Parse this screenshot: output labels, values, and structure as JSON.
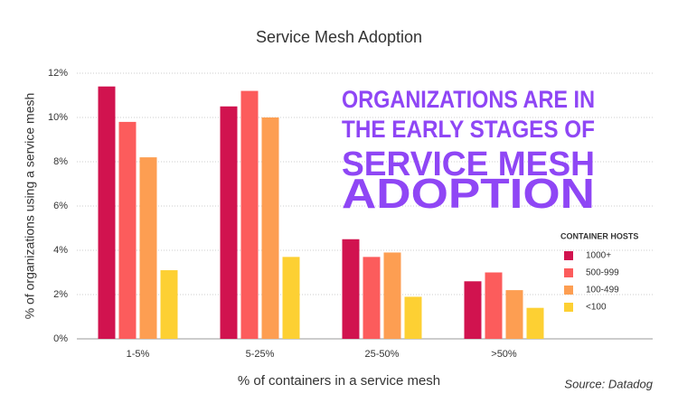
{
  "chart_data": {
    "type": "bar",
    "title": "Service Mesh Adoption",
    "x_label": "% of containers in a service mesh",
    "y_label": "% of organizations using a service mesh",
    "categories": [
      "1-5%",
      "5-25%",
      "25-50%",
      ">50%"
    ],
    "series": [
      {
        "name": "1000+",
        "color": "#d1134f",
        "values": [
          11.4,
          10.5,
          4.5,
          2.6
        ]
      },
      {
        "name": "500-999",
        "color": "#fc5c5c",
        "values": [
          9.8,
          11.2,
          3.7,
          3.0
        ]
      },
      {
        "name": "100-499",
        "color": "#fd9e52",
        "values": [
          8.2,
          10.0,
          3.9,
          2.2
        ]
      },
      {
        "name": "<100",
        "color": "#fdd033",
        "values": [
          3.1,
          3.7,
          1.9,
          1.4
        ]
      }
    ],
    "legend_title": "CONTAINER HOSTS",
    "legend_position": "right",
    "annotation": [
      "ORGANIZATIONS ARE IN",
      "THE EARLY STAGES OF",
      "SERVICE MESH",
      "ADOPTION"
    ],
    "annotation_color": "#8f46f5",
    "source": "Source: Datadog",
    "ylim": [
      0,
      12
    ],
    "yticks": [
      {
        "value": 0,
        "label": "0%"
      },
      {
        "value": 2,
        "label": "2%"
      },
      {
        "value": 4,
        "label": "4%"
      },
      {
        "value": 6,
        "label": "6%"
      },
      {
        "value": 8,
        "label": "8%"
      },
      {
        "value": 10,
        "label": "10%"
      },
      {
        "value": 12,
        "label": "12%"
      }
    ],
    "grid": true
  }
}
